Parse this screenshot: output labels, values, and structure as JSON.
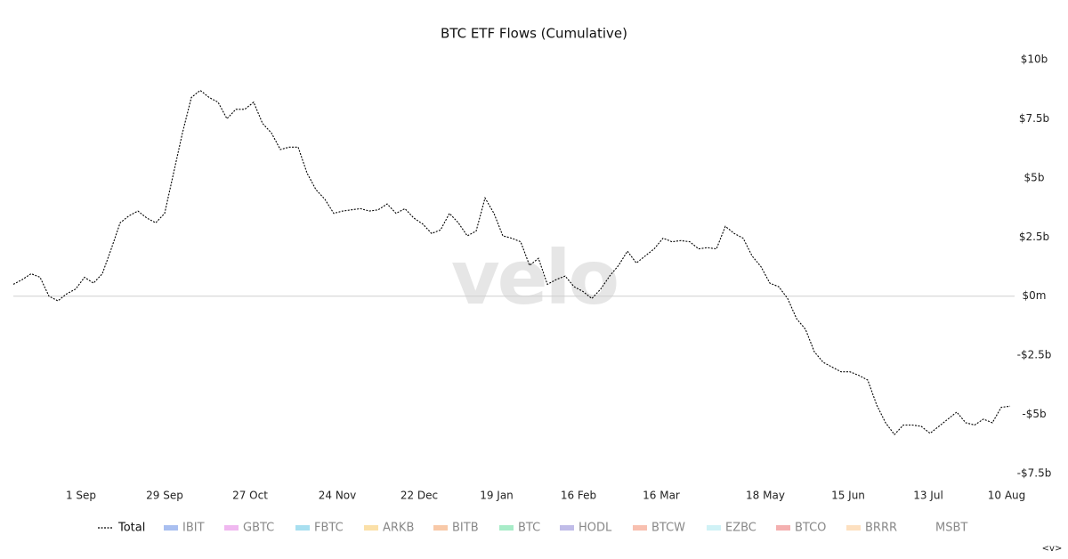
{
  "chart_data": {
    "type": "line",
    "title": "BTC ETF Flows (Cumulative)",
    "watermark": "velo",
    "corner_label": "<v>",
    "x": [
      0,
      1,
      2,
      3,
      4,
      5,
      6,
      7,
      8,
      9,
      10,
      11,
      12,
      13,
      14,
      15,
      16,
      17,
      18,
      19,
      20,
      21,
      22,
      23,
      24,
      25,
      26,
      27,
      28,
      29,
      30,
      31,
      32,
      33,
      34,
      35,
      36,
      37,
      38,
      39,
      40,
      41,
      42,
      43,
      44,
      45,
      46,
      47,
      48,
      49,
      50,
      51,
      52,
      53,
      54,
      55,
      56,
      57,
      58,
      59,
      60,
      61,
      62,
      63,
      64,
      65,
      66,
      67,
      68,
      69,
      70,
      71,
      72,
      73,
      74,
      75,
      76,
      77,
      78,
      79,
      80,
      81,
      82,
      83,
      84,
      85,
      86,
      87,
      88,
      89,
      90,
      91,
      92,
      93,
      94,
      95,
      96,
      97,
      98,
      99,
      100,
      101,
      102,
      103,
      104,
      105,
      106,
      107,
      108,
      109,
      110,
      111,
      112
    ],
    "series": [
      {
        "name": "Total",
        "color": "#000000",
        "dashed": true,
        "values": [
          0.5,
          0.7,
          0.95,
          0.8,
          0,
          -0.2,
          0.1,
          0.3,
          0.8,
          0.55,
          0.95,
          2.0,
          3.1,
          3.4,
          3.6,
          3.3,
          3.1,
          3.5,
          5.2,
          6.9,
          8.4,
          8.7,
          8.4,
          8.2,
          7.5,
          7.9,
          7.9,
          8.2,
          7.3,
          6.9,
          6.2,
          6.3,
          6.3,
          5.2,
          4.5,
          4.1,
          3.5,
          3.6,
          3.65,
          3.7,
          3.6,
          3.65,
          3.9,
          3.5,
          3.7,
          3.3,
          3.05,
          2.65,
          2.8,
          3.5,
          3.1,
          2.55,
          2.75,
          4.15,
          3.5,
          2.55,
          2.45,
          2.3,
          1.3,
          1.6,
          0.5,
          0.7,
          0.85,
          0.4,
          0.2,
          -0.1,
          0.3,
          0.85,
          1.3,
          1.9,
          1.4,
          1.7,
          2.0,
          2.45,
          2.3,
          2.35,
          2.3,
          2.0,
          2.05,
          2.0,
          2.95,
          2.65,
          2.45,
          1.7,
          1.25,
          0.55,
          0.4,
          -0.1,
          -0.95,
          -1.4,
          -2.35,
          -2.8,
          -3.0,
          -3.2,
          -3.2,
          -3.35,
          -3.55,
          -4.6,
          -5.35,
          -5.85,
          -5.45,
          -5.45,
          -5.5,
          -5.8,
          -5.5,
          -5.2,
          -4.9,
          -5.35,
          -5.45,
          -5.2,
          -5.35,
          -4.7,
          -4.65
        ]
      }
    ],
    "legend": [
      {
        "name": "IBIT",
        "color": "#a9bff0"
      },
      {
        "name": "GBTC",
        "color": "#f0b8f0"
      },
      {
        "name": "FBTC",
        "color": "#a8dff0"
      },
      {
        "name": "ARKB",
        "color": "#fbe0a8"
      },
      {
        "name": "BITB",
        "color": "#f8c9a8"
      },
      {
        "name": "BTC",
        "color": "#a8ecc8"
      },
      {
        "name": "HODL",
        "color": "#c0bce8"
      },
      {
        "name": "BTCW",
        "color": "#f8c0b0"
      },
      {
        "name": "EZBC",
        "color": "#d0f2f6"
      },
      {
        "name": "BTCO",
        "color": "#f4b0b0"
      },
      {
        "name": "BRRR",
        "color": "#fde0c0"
      },
      {
        "name": "MSBT",
        "color": "#ffffff"
      }
    ],
    "xlim": [
      0,
      112
    ],
    "xticks": [
      {
        "value": 7.6,
        "label": "1 Sep"
      },
      {
        "value": 17,
        "label": "29 Sep"
      },
      {
        "value": 26.6,
        "label": "27 Oct"
      },
      {
        "value": 36.4,
        "label": "24 Nov"
      },
      {
        "value": 45.6,
        "label": "22 Dec"
      },
      {
        "value": 54.3,
        "label": "19 Jan"
      },
      {
        "value": 63.5,
        "label": "16 Feb"
      },
      {
        "value": 72.8,
        "label": "16 Mar"
      },
      {
        "value": 84.5,
        "label": "18 May"
      },
      {
        "value": 93.8,
        "label": "15 Jun"
      },
      {
        "value": 102.8,
        "label": "13 Jul"
      },
      {
        "value": 111.6,
        "label": "10 Aug"
      }
    ],
    "ylim": [
      -7.5,
      10
    ],
    "yticks": [
      {
        "value": 10,
        "label": "$10b"
      },
      {
        "value": 7.5,
        "label": "$7.5b"
      },
      {
        "value": 5,
        "label": "$5b"
      },
      {
        "value": 2.5,
        "label": "$2.5b"
      },
      {
        "value": 0,
        "label": "$0m"
      },
      {
        "value": -2.5,
        "label": "-$2.5b"
      },
      {
        "value": -5,
        "label": "-$5b"
      },
      {
        "value": -7.5,
        "label": "-$7.5b"
      }
    ],
    "zero_line": true,
    "y_axis_side": "right"
  }
}
